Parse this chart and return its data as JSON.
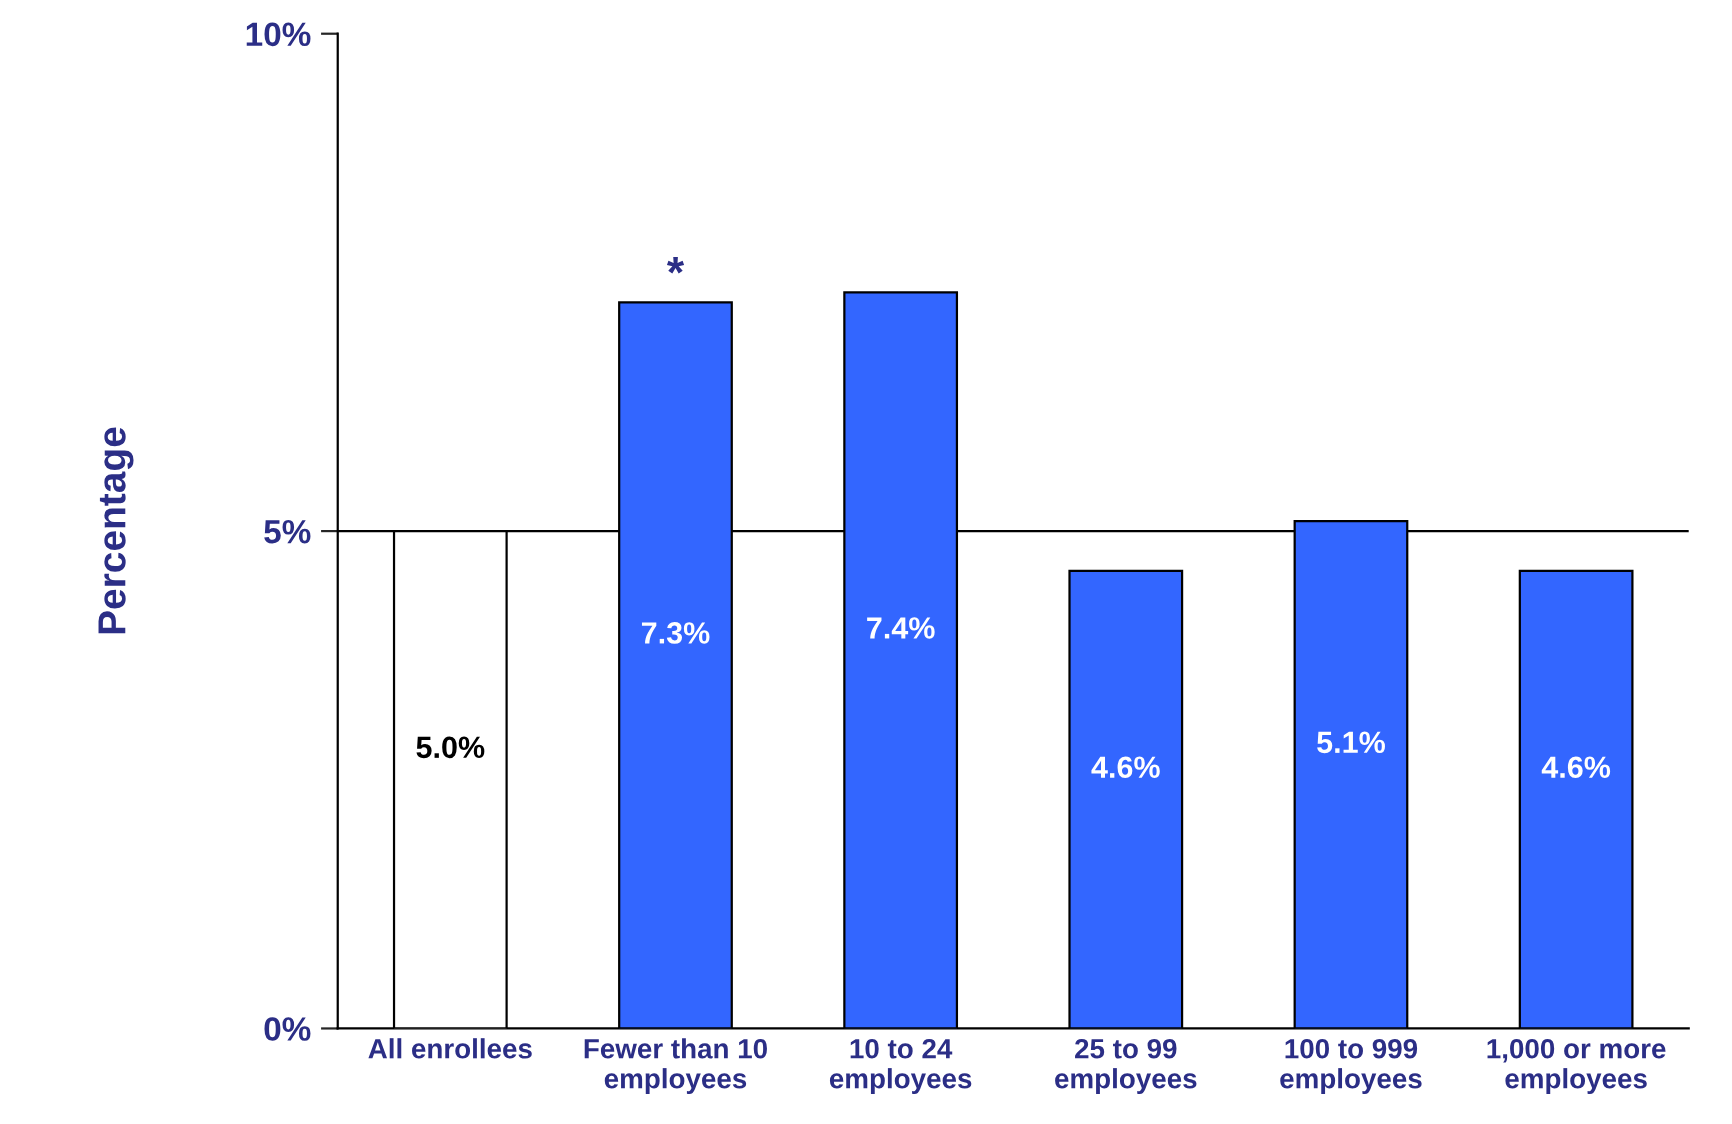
{
  "chart_data": {
    "type": "bar",
    "ylabel": "Percentage",
    "categories": [
      "All enrollees",
      "Fewer than 10\nemployees",
      "10 to 24\nemployees",
      "25 to 99\nemployees",
      "100 to 999\nemployees",
      "1,000 or more\nemployees"
    ],
    "values": [
      5.0,
      7.3,
      7.4,
      4.6,
      5.1,
      4.6
    ],
    "colors": [
      "#ffffff",
      "#3366ff",
      "#3366ff",
      "#3366ff",
      "#3366ff",
      "#3366ff"
    ],
    "value_labels": [
      "5.0%",
      "7.3%",
      "7.4%",
      "4.6%",
      "5.1%",
      "4.6%"
    ],
    "ylim": [
      0,
      10
    ],
    "yticks": [
      {
        "value": 0,
        "label": "0%"
      },
      {
        "value": 5,
        "label": "5%"
      },
      {
        "value": 10,
        "label": "10%"
      }
    ],
    "ref_lines": [
      {
        "axis": "y",
        "value": 5
      }
    ],
    "annotations": [
      {
        "text": "*",
        "x": "Fewer than 10\nemployees",
        "y": 7.3
      }
    ]
  }
}
